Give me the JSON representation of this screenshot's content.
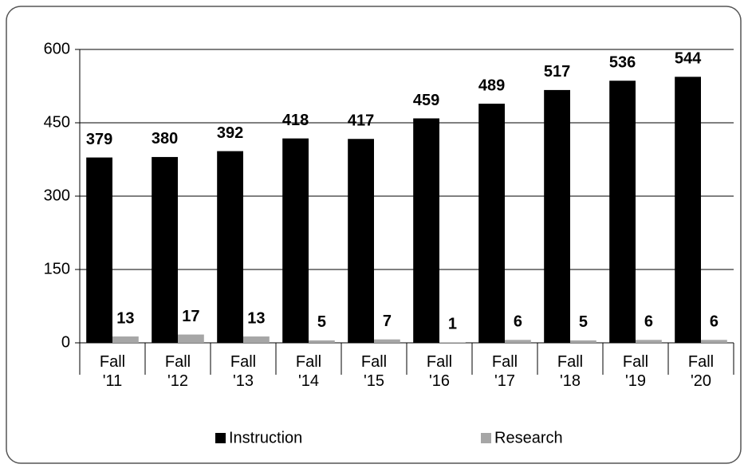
{
  "chart_data": {
    "type": "bar",
    "categories": [
      "Fall '11",
      "Fall '12",
      "Fall '13",
      "Fall '14",
      "Fall '15",
      "Fall '16",
      "Fall '17",
      "Fall '18",
      "Fall '19",
      "Fall '20"
    ],
    "series": [
      {
        "name": "Instruction",
        "color": "#000000",
        "values": [
          379,
          380,
          392,
          418,
          417,
          459,
          489,
          517,
          536,
          544
        ]
      },
      {
        "name": "Research",
        "color": "#a6a6a6",
        "values": [
          13,
          17,
          13,
          5,
          7,
          1,
          6,
          5,
          6,
          6
        ]
      }
    ],
    "ylim": [
      0,
      600
    ],
    "yticks": [
      0,
      150,
      300,
      450,
      600
    ],
    "grid": true,
    "legend": "bottom"
  }
}
